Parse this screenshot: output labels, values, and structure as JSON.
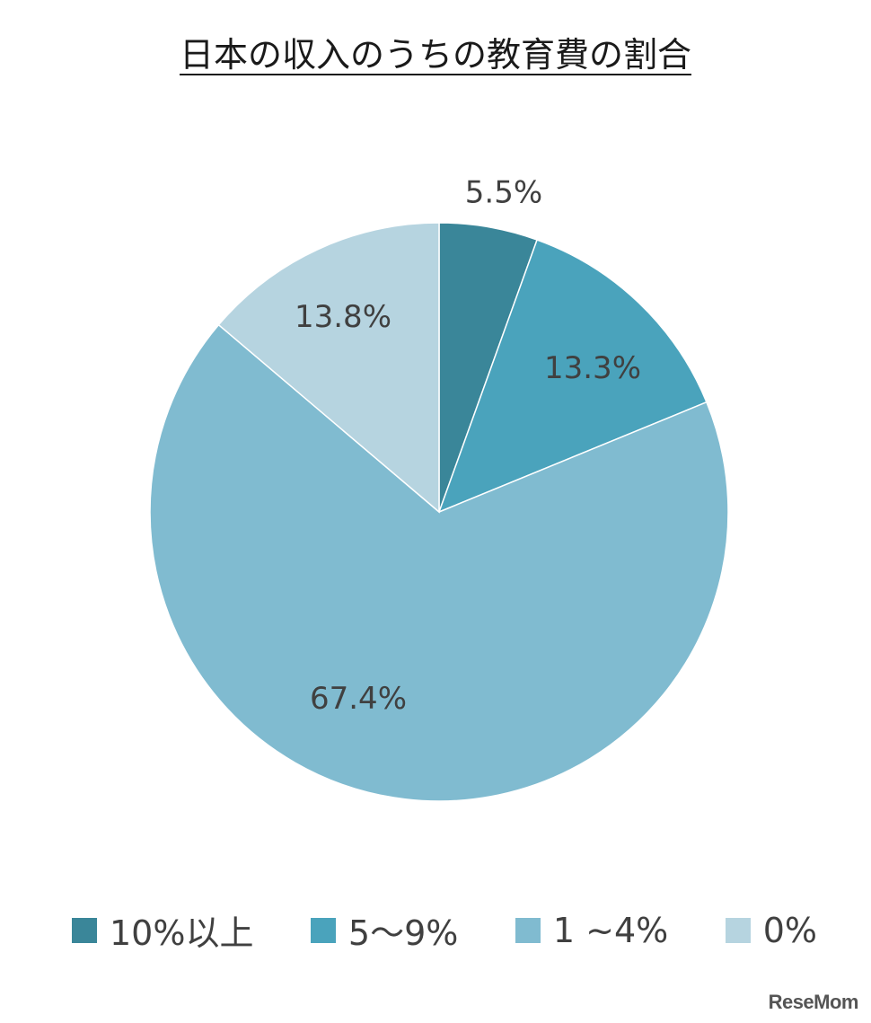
{
  "chart_data": {
    "type": "pie",
    "title": "日本の収入のうちの教育費の割合",
    "categories": [
      "10%以上",
      "5～9%",
      "1 ~4%",
      "0%"
    ],
    "values": [
      5.5,
      13.3,
      67.4,
      13.8
    ],
    "value_labels": [
      "5.5%",
      "13.3%",
      "67.4%",
      "13.8%"
    ],
    "colors": [
      "#3a8699",
      "#4aa3bc",
      "#80bbd0",
      "#b6d4e0"
    ],
    "start_angle": "12 o'clock",
    "direction": "clockwise",
    "legend_position": "bottom"
  },
  "watermark": "ReseMom"
}
